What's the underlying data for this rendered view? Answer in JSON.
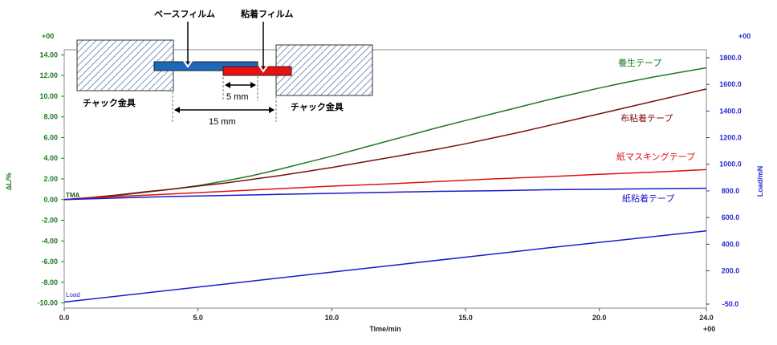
{
  "chart_data": {
    "type": "line",
    "xlabel": "Time/min",
    "ylabel_left": "∆L/%",
    "ylabel_right": "Load/mN",
    "x_ticks": [
      "0.0",
      "5.0",
      "10.0",
      "15.0",
      "20.0",
      "24.0"
    ],
    "x_tick_values": [
      0,
      5,
      10,
      15,
      20,
      24
    ],
    "x_exp": "+00",
    "xlim": [
      0,
      24
    ],
    "left_axis": {
      "exp": "+00",
      "ylim": [
        -10.5,
        14.5
      ],
      "ticks": [
        "14.00",
        "12.00",
        "10.00",
        "8.00",
        "6.00",
        "4.00",
        "2.00",
        "0.00",
        "-2.00",
        "-4.00",
        "-6.00",
        "-8.00",
        "-10.00"
      ],
      "tick_values": [
        14,
        12,
        10,
        8,
        6,
        4,
        2,
        0,
        -2,
        -4,
        -6,
        -8,
        -10
      ],
      "color": "#1e7a1e"
    },
    "right_axis": {
      "exp": "+00",
      "ylim": [
        -80,
        1860
      ],
      "ticks": [
        "1800.0",
        "1600.0",
        "1400.0",
        "1200.0",
        "1000.0",
        "800.0",
        "600.0",
        "400.0",
        "200.0",
        "-50.0"
      ],
      "tick_values": [
        1800,
        1600,
        1400,
        1200,
        1000,
        800,
        600,
        400,
        200,
        -50
      ],
      "color": "#2a2ad0"
    },
    "series": [
      {
        "name": "養生テープ",
        "axis": "left",
        "color": "#1e7a1e",
        "x": [
          0,
          1,
          2,
          3,
          4,
          5,
          6,
          7,
          8,
          9,
          10,
          11,
          12,
          13,
          14,
          15,
          16,
          17,
          18,
          19,
          20,
          21,
          22,
          23,
          24
        ],
        "y": [
          0.0,
          0.2,
          0.4,
          0.7,
          1.0,
          1.35,
          1.8,
          2.3,
          2.9,
          3.55,
          4.2,
          4.9,
          5.6,
          6.3,
          7.0,
          7.65,
          8.3,
          8.95,
          9.6,
          10.2,
          10.8,
          11.35,
          11.85,
          12.3,
          12.75
        ]
      },
      {
        "name": "布粘着テープ",
        "axis": "left",
        "color": "#7a1010",
        "x": [
          0,
          1,
          2,
          3,
          4,
          5,
          6,
          7,
          8,
          9,
          10,
          11,
          12,
          13,
          14,
          15,
          16,
          17,
          18,
          19,
          20,
          21,
          22,
          23,
          24
        ],
        "y": [
          0.0,
          0.2,
          0.45,
          0.75,
          1.0,
          1.3,
          1.6,
          1.95,
          2.3,
          2.7,
          3.1,
          3.55,
          4.0,
          4.45,
          4.9,
          5.4,
          5.95,
          6.5,
          7.1,
          7.7,
          8.3,
          8.9,
          9.5,
          10.1,
          10.7
        ]
      },
      {
        "name": "紙マスキングテープ",
        "axis": "left",
        "color": "#e01010",
        "x": [
          0,
          2,
          4,
          6,
          8,
          10,
          12,
          14,
          16,
          18,
          20,
          22,
          24
        ],
        "y": [
          0.0,
          0.3,
          0.55,
          0.8,
          1.05,
          1.3,
          1.5,
          1.75,
          2.0,
          2.2,
          2.45,
          2.65,
          2.9
        ]
      },
      {
        "name": "紙粘着テープ",
        "axis": "left",
        "color": "#1a1ad0",
        "x": [
          0,
          2,
          4,
          6,
          8,
          10,
          12,
          14,
          16,
          18,
          20,
          22,
          24
        ],
        "y": [
          0.0,
          0.15,
          0.3,
          0.4,
          0.5,
          0.6,
          0.7,
          0.8,
          0.85,
          0.95,
          1.0,
          1.05,
          1.1
        ]
      },
      {
        "name": "Load",
        "axis": "right",
        "color": "#1a1ad0",
        "x": [
          0,
          6,
          12,
          18,
          24
        ],
        "y": [
          -35,
          100,
          235,
          370,
          500
        ]
      }
    ],
    "annotations": {
      "tma_label": "TMA",
      "load_label": "Load",
      "base_film": "ベースフィルム",
      "adhesive_film": "粘着フィルム",
      "chuck_left": "チャック金具",
      "chuck_right": "チャック金具",
      "dim_5": "5 mm",
      "dim_15": "15 mm"
    }
  }
}
